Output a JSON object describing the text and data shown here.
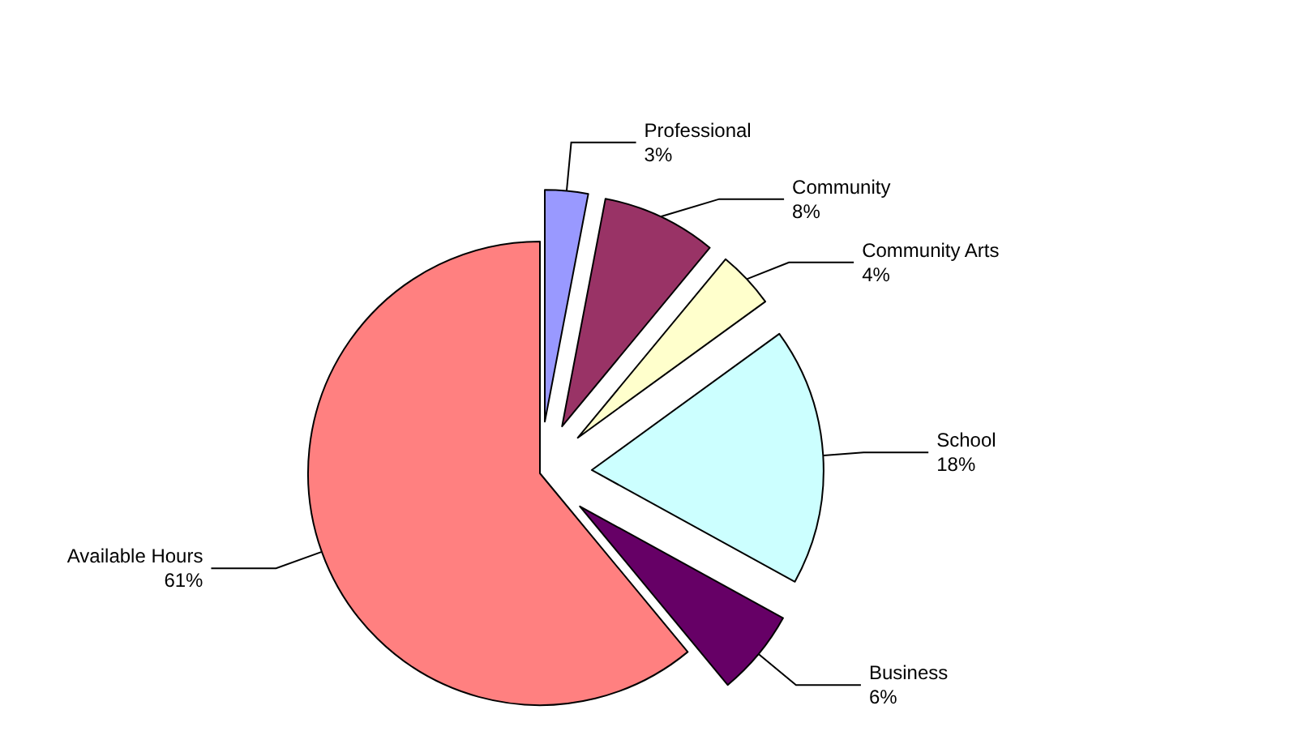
{
  "chart_data": {
    "type": "pie",
    "categories": [
      "Professional",
      "Community",
      "Community Arts",
      "School",
      "Business",
      "Available Hours"
    ],
    "values": [
      3,
      8,
      4,
      18,
      6,
      61
    ],
    "colors": [
      "#9999ff",
      "#993366",
      "#ffffcc",
      "#ccffff",
      "#660066",
      "#ff8080"
    ],
    "value_labels": [
      "3%",
      "8%",
      "4%",
      "18%",
      "6%",
      "61%"
    ],
    "legend": false
  }
}
